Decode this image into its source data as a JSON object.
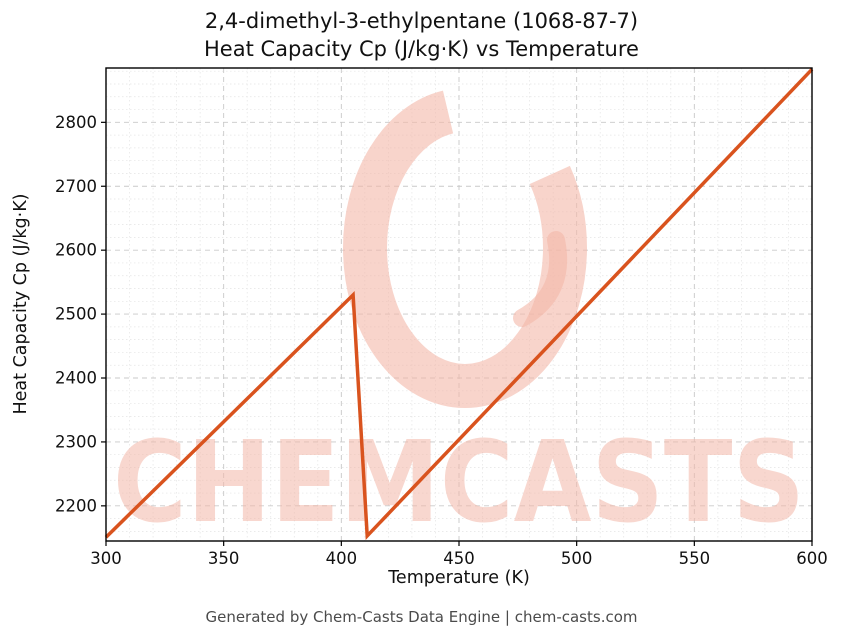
{
  "chart_data": {
    "type": "line",
    "title": "2,4-dimethyl-3-ethylpentane (1068-87-7)",
    "subtitle": "Heat Capacity Cp (J/kg·K) vs Temperature",
    "xlabel": "Temperature (K)",
    "ylabel": "Heat Capacity Cp (J/kg·K)",
    "xlim": [
      300,
      600
    ],
    "ylim": [
      2145,
      2885
    ],
    "xticks": [
      300,
      350,
      400,
      450,
      500,
      550,
      600
    ],
    "yticks": [
      2200,
      2300,
      2400,
      2500,
      2600,
      2700,
      2800
    ],
    "xminor_step": 10,
    "yminor_step": 20,
    "grid": true,
    "legend": "none",
    "series": [
      {
        "name": "Heat Capacity Cp",
        "color": "#d9531e",
        "points": [
          [
            300,
            2151
          ],
          [
            405,
            2530
          ],
          [
            411,
            2153
          ],
          [
            600,
            2883
          ]
        ]
      }
    ]
  },
  "watermark": {
    "text": "CHEMCASTS",
    "logo": "c-swirl-icon",
    "color": "#f3b7a8"
  },
  "footer": {
    "text": "Generated by Chem-Casts Data Engine | chem-casts.com"
  }
}
